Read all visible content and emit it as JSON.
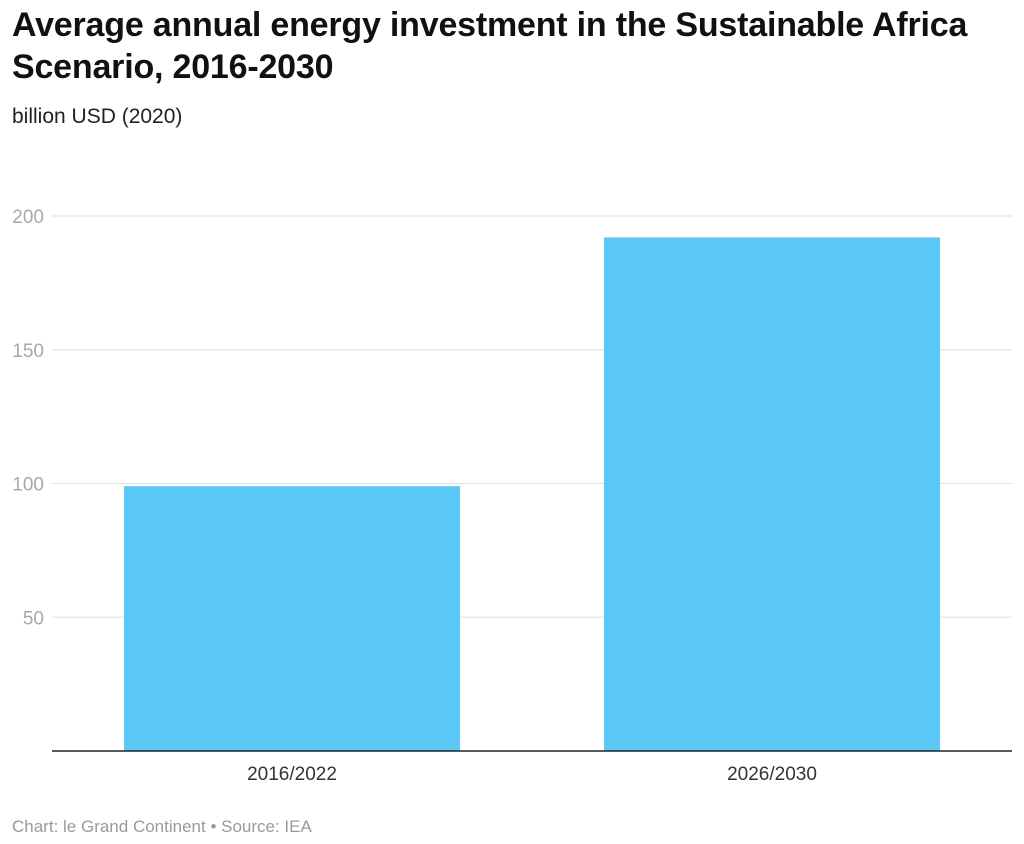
{
  "title": "Average annual energy investment in the Sustainable Africa Scenario, 2016-2030",
  "subtitle": "billion USD (2020)",
  "footer": "Chart: le Grand Continent • Source: IEA",
  "colors": {
    "bar": "#5bc9f7",
    "grid": "#e4e4e4",
    "axis": "#222222",
    "tick": "#a8a8a8"
  },
  "chart_data": {
    "type": "bar",
    "categories": [
      "2016/2022",
      "2026/2030"
    ],
    "values": [
      99,
      192
    ],
    "ylim": [
      0,
      200
    ],
    "yticks": [
      50,
      100,
      150,
      200
    ],
    "grid": true,
    "xlabel": "",
    "ylabel": ""
  }
}
